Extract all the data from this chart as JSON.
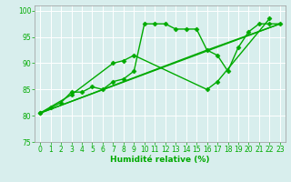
{
  "bg_color": "#d8eeed",
  "grid_color": "#b8d8d8",
  "line_color": "#00aa00",
  "marker_color": "#00aa00",
  "xlabel": "Humidité relative (%)",
  "ylim": [
    75,
    101
  ],
  "xlim": [
    -0.5,
    23.5
  ],
  "yticks": [
    75,
    80,
    85,
    90,
    95,
    100
  ],
  "xticks": [
    0,
    1,
    2,
    3,
    4,
    5,
    6,
    7,
    8,
    9,
    10,
    11,
    12,
    13,
    14,
    15,
    16,
    17,
    18,
    19,
    20,
    21,
    22,
    23
  ],
  "series": [
    {
      "x": [
        0,
        1,
        2,
        3,
        4,
        5,
        6,
        7,
        8,
        9,
        10,
        11,
        12,
        13,
        14,
        15,
        16,
        17,
        18,
        19,
        20,
        21,
        22,
        23
      ],
      "y": [
        80.5,
        81.5,
        82.5,
        84.5,
        84.5,
        85.5,
        85.0,
        86.5,
        87.0,
        88.5,
        97.5,
        97.5,
        97.5,
        96.5,
        96.5,
        96.5,
        92.5,
        91.5,
        88.5,
        93.0,
        96.0,
        97.5,
        97.5,
        97.5
      ],
      "has_markers": true,
      "lw": 1.0
    },
    {
      "x": [
        0,
        3,
        7,
        8,
        9,
        16,
        17,
        22
      ],
      "y": [
        80.5,
        84.0,
        90.0,
        90.5,
        91.5,
        85.0,
        86.5,
        98.5
      ],
      "has_markers": true,
      "lw": 1.0
    },
    {
      "x": [
        0,
        23
      ],
      "y": [
        80.5,
        97.5
      ],
      "has_markers": false,
      "lw": 1.0
    },
    {
      "x": [
        0,
        16,
        23
      ],
      "y": [
        80.5,
        92.5,
        97.5
      ],
      "has_markers": false,
      "lw": 1.0
    }
  ]
}
